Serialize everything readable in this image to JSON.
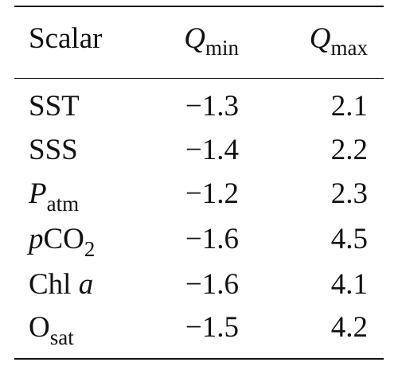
{
  "table": {
    "headers": {
      "scalar": "Scalar",
      "qmin_symbol": "Q",
      "qmin_sub": "min",
      "qmax_symbol": "Q",
      "qmax_sub": "max"
    },
    "rows": [
      {
        "scalar_main": "SST",
        "scalar_sub": "",
        "qmin": "−1.3",
        "qmax": "2.1"
      },
      {
        "scalar_main": "SSS",
        "scalar_sub": "",
        "qmin": "−1.4",
        "qmax": "2.2"
      },
      {
        "scalar_main": "P",
        "scalar_sub": "atm",
        "qmin": "−1.2",
        "qmax": "2.3"
      },
      {
        "scalar_prefix": "p",
        "scalar_main": "CO",
        "scalar_sub": "2",
        "qmin": "−1.6",
        "qmax": "4.5"
      },
      {
        "scalar_main": "Chl ",
        "scalar_suffix": "a",
        "qmin": "−1.6",
        "qmax": "4.1"
      },
      {
        "scalar_main": "O",
        "scalar_sub": "sat",
        "qmin": "−1.5",
        "qmax": "4.2"
      }
    ]
  }
}
